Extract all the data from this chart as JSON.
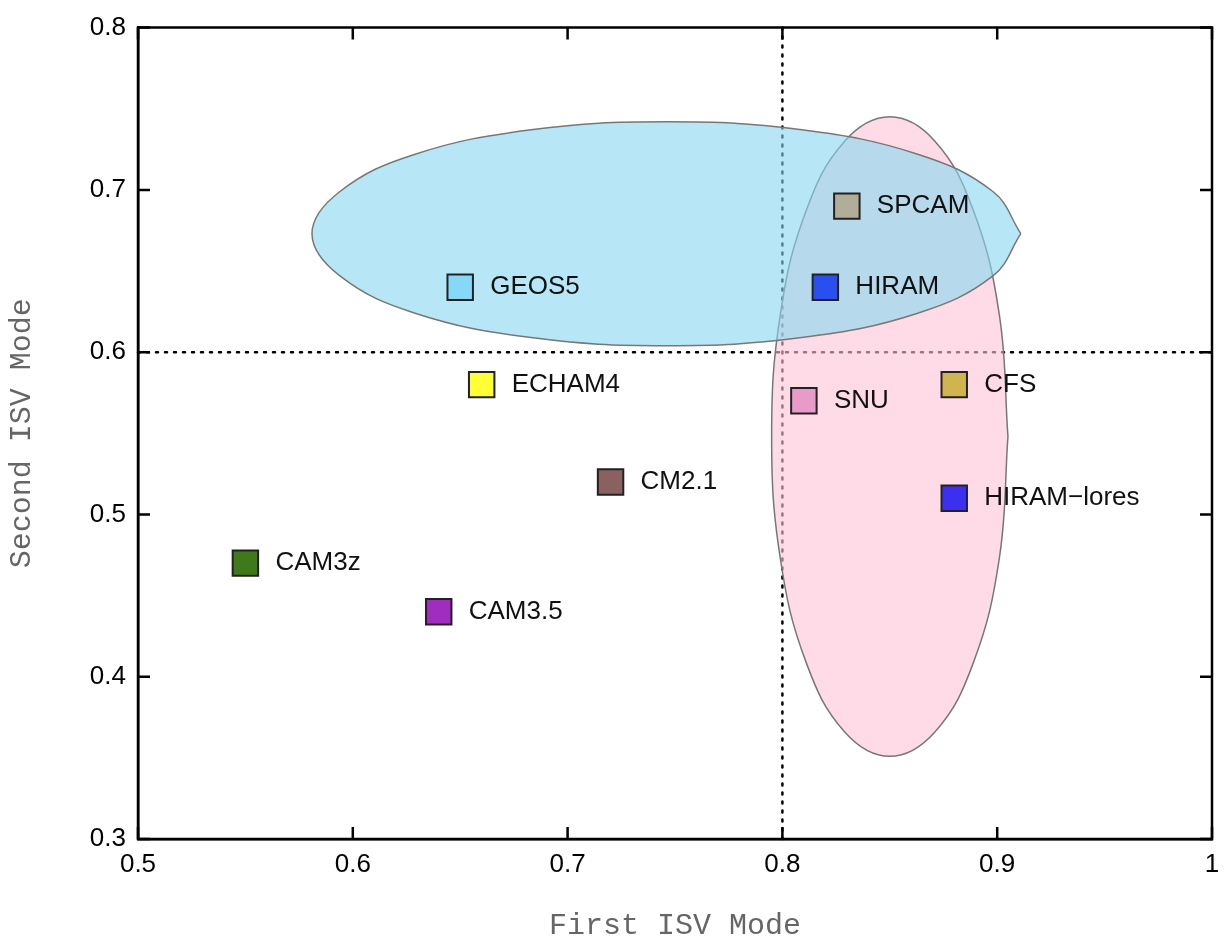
{
  "chart_data": {
    "type": "scatter",
    "xlabel": "First ISV Mode",
    "ylabel": "Second ISV Mode",
    "xlim": [
      0.5,
      1
    ],
    "ylim": [
      0.3,
      0.8
    ],
    "xticks": [
      0.5,
      0.6,
      0.7,
      0.8,
      0.9,
      1
    ],
    "yticks": [
      0.3,
      0.4,
      0.5,
      0.6,
      0.7,
      0.8
    ],
    "grid": false,
    "legend": false,
    "marker": "square",
    "ref_lines": [
      {
        "axis": "x",
        "value": 0.8,
        "line_style": "dotted",
        "color": "#000000"
      },
      {
        "axis": "y",
        "value": 0.6,
        "line_style": "dotted",
        "color": "#000000"
      }
    ],
    "series": [
      {
        "type": "area",
        "marker": "none",
        "color": "#87d7f0",
        "x": [
          0.911,
          0.898,
          0.863,
          0.809,
          0.746,
          0.683,
          0.629,
          0.594,
          0.581,
          0.594,
          0.629,
          0.683,
          0.746,
          0.809,
          0.863,
          0.898,
          0.911
        ],
        "values": [
          0.673,
          0.699,
          0.722,
          0.737,
          0.742,
          0.737,
          0.722,
          0.699,
          0.673,
          0.647,
          0.624,
          0.609,
          0.604,
          0.609,
          0.624,
          0.647,
          0.673
        ]
      },
      {
        "type": "area",
        "marker": "none",
        "color": "#ffc3d7",
        "x": [
          0.905,
          0.901,
          0.889,
          0.871,
          0.85,
          0.829,
          0.811,
          0.799,
          0.795,
          0.799,
          0.811,
          0.829,
          0.85,
          0.871,
          0.889,
          0.901,
          0.905
        ],
        "values": [
          0.548,
          0.623,
          0.687,
          0.73,
          0.745,
          0.73,
          0.687,
          0.623,
          0.548,
          0.473,
          0.409,
          0.366,
          0.351,
          0.366,
          0.409,
          0.473,
          0.548
        ]
      },
      {
        "name": "GEOS5",
        "color": "#87d7f7",
        "x": [
          0.65
        ],
        "values": [
          0.64
        ]
      },
      {
        "name": "SPCAM",
        "color": "#b0ad98",
        "x": [
          0.83
        ],
        "values": [
          0.69
        ]
      },
      {
        "name": "HIRAM",
        "color": "#2a4ff0",
        "x": [
          0.82
        ],
        "values": [
          0.64
        ]
      },
      {
        "name": "ECHAM4",
        "color": "#ffff33",
        "x": [
          0.66
        ],
        "values": [
          0.58
        ]
      },
      {
        "name": "SNU",
        "color": "#e89ac8",
        "x": [
          0.81
        ],
        "values": [
          0.57
        ]
      },
      {
        "name": "CFS",
        "color": "#d0b450",
        "x": [
          0.88
        ],
        "values": [
          0.58
        ]
      },
      {
        "name": "CM2.1",
        "color": "#8a6060",
        "x": [
          0.72
        ],
        "values": [
          0.52
        ]
      },
      {
        "name": "HIRAM−lores",
        "color": "#3c2ff0",
        "x": [
          0.88
        ],
        "values": [
          0.51
        ]
      },
      {
        "name": "CAM3z",
        "color": "#3f7a1a",
        "x": [
          0.55
        ],
        "values": [
          0.47
        ]
      },
      {
        "name": "CAM3.5",
        "color": "#a02cc0",
        "x": [
          0.64
        ],
        "values": [
          0.44
        ]
      }
    ]
  }
}
